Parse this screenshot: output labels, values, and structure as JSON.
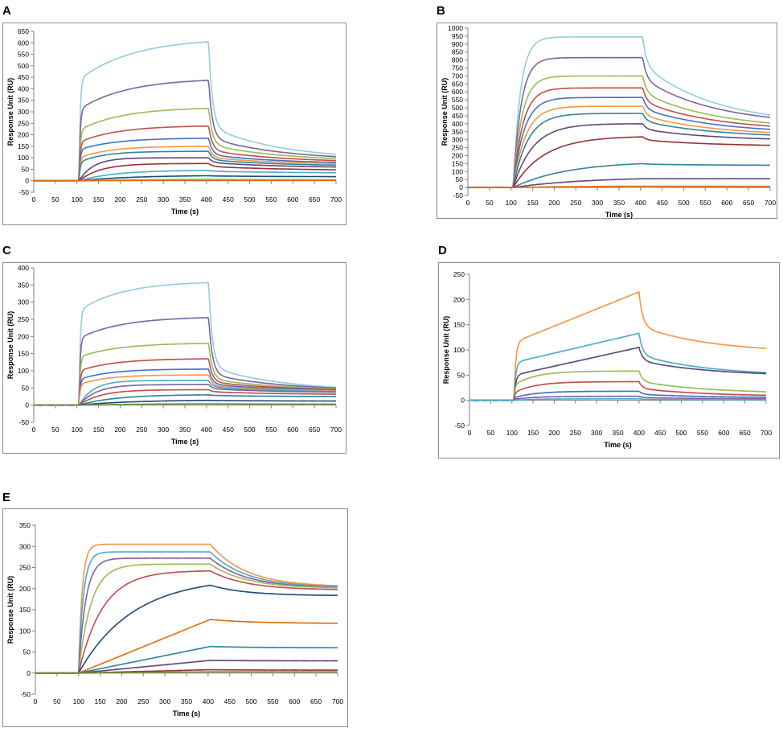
{
  "figure": {
    "panels": [
      "A",
      "B",
      "C",
      "D",
      "E"
    ]
  },
  "colors": {
    "blue": "#4472c4",
    "red": "#c0504d",
    "green": "#9bbb59",
    "purple": "#8064a2",
    "teal": "#4bacc6",
    "orange": "#f79646",
    "navy": "#1f4e79",
    "darkred": "#943634",
    "olive": "#76923c",
    "darkpurple": "#5f497a",
    "darkteal": "#31859b",
    "darkorange": "#e46c0a",
    "salmon": "#d99694",
    "lavender": "#b3a2c7",
    "lightgreen": "#c3d69b",
    "skyblue": "#93cddd"
  },
  "chart_data": [
    {
      "panel": "A",
      "type": "line",
      "title": "",
      "xlabel": "Time (s)",
      "ylabel": "Response Unit (RU)",
      "xlim": [
        0,
        700
      ],
      "ylim": [
        -50,
        650
      ],
      "xticks": [
        "0",
        "50",
        "100",
        "150",
        "200",
        "250",
        "300",
        "350",
        "400",
        "450",
        "500",
        "550",
        "600",
        "650",
        "700"
      ],
      "yticks": [
        "-50",
        "0",
        "50",
        "100",
        "150",
        "200",
        "250",
        "300",
        "350",
        "400",
        "450",
        "500",
        "550",
        "600",
        "650"
      ],
      "inject_start": 105,
      "inject_end": 405,
      "series": [
        {
          "color": "#93cddd",
          "jump": 440,
          "end_assoc": 605,
          "rate": 0.008,
          "end_dissoc": 115,
          "fast": 0.75
        },
        {
          "color": "#8064a2",
          "jump": 310,
          "end_assoc": 437,
          "rate": 0.009,
          "end_dissoc": 105,
          "fast": 0.75
        },
        {
          "color": "#9bbb59",
          "jump": 220,
          "end_assoc": 315,
          "rate": 0.01,
          "end_dissoc": 97,
          "fast": 0.72
        },
        {
          "color": "#c0504d",
          "jump": 168,
          "end_assoc": 238,
          "rate": 0.011,
          "end_dissoc": 88,
          "fast": 0.7
        },
        {
          "color": "#4472c4",
          "jump": 135,
          "end_assoc": 185,
          "rate": 0.012,
          "end_dissoc": 80,
          "fast": 0.68
        },
        {
          "color": "#f79646",
          "jump": 100,
          "end_assoc": 150,
          "rate": 0.014,
          "end_dissoc": 75,
          "fast": 0.65
        },
        {
          "color": "#31859b",
          "jump": 80,
          "end_assoc": 128,
          "rate": 0.018,
          "end_dissoc": 68,
          "fast": 0.6
        },
        {
          "color": "#5f497a",
          "jump": 0,
          "end_assoc": 100,
          "rate": 0.03,
          "end_dissoc": 60,
          "fast": 0.5
        },
        {
          "color": "#943634",
          "jump": 0,
          "end_assoc": 75,
          "rate": 0.02,
          "end_dissoc": 48,
          "fast": 0.45
        },
        {
          "color": "#4bacc6",
          "jump": 0,
          "end_assoc": 45,
          "rate": 0.012,
          "end_dissoc": 35,
          "fast": 0.3
        },
        {
          "color": "#1f4e79",
          "jump": 0,
          "end_assoc": 22,
          "rate": 0.008,
          "end_dissoc": 18,
          "fast": 0.2
        },
        {
          "color": "#c3d69b",
          "jump": 0,
          "end_assoc": 8,
          "rate": 0.006,
          "end_dissoc": 6,
          "fast": 0.1
        },
        {
          "color": "#e46c0a",
          "jump": 0,
          "end_assoc": 3,
          "rate": 0.006,
          "end_dissoc": 2,
          "fast": 0.1
        }
      ]
    },
    {
      "panel": "B",
      "type": "line",
      "title": "",
      "xlabel": "Time (s)",
      "ylabel": "Response Unit (RU)",
      "xlim": [
        0,
        700
      ],
      "ylim": [
        -50,
        1000
      ],
      "xticks": [
        "0",
        "50",
        "100",
        "150",
        "200",
        "250",
        "300",
        "350",
        "400",
        "450",
        "500",
        "550",
        "600",
        "650",
        "700"
      ],
      "yticks": [
        "-50",
        "0",
        "50",
        "100",
        "150",
        "200",
        "250",
        "300",
        "350",
        "400",
        "450",
        "500",
        "550",
        "600",
        "650",
        "700",
        "750",
        "800",
        "850",
        "900",
        "950",
        "1000"
      ],
      "inject_start": 105,
      "inject_end": 405,
      "series": [
        {
          "color": "#93cddd",
          "jump": 0,
          "end_assoc": 945,
          "rate": 0.06,
          "end_dissoc": 455,
          "fast": 0.35
        },
        {
          "color": "#8064a2",
          "jump": 0,
          "end_assoc": 815,
          "rate": 0.055,
          "end_dissoc": 440,
          "fast": 0.35
        },
        {
          "color": "#9bbb59",
          "jump": 0,
          "end_assoc": 700,
          "rate": 0.05,
          "end_dissoc": 405,
          "fast": 0.35
        },
        {
          "color": "#c0504d",
          "jump": 0,
          "end_assoc": 625,
          "rate": 0.045,
          "end_dissoc": 385,
          "fast": 0.35
        },
        {
          "color": "#4472c4",
          "jump": 0,
          "end_assoc": 565,
          "rate": 0.04,
          "end_dissoc": 365,
          "fast": 0.35
        },
        {
          "color": "#f79646",
          "jump": 0,
          "end_assoc": 510,
          "rate": 0.035,
          "end_dissoc": 345,
          "fast": 0.35
        },
        {
          "color": "#31859b",
          "jump": 0,
          "end_assoc": 465,
          "rate": 0.03,
          "end_dissoc": 330,
          "fast": 0.35
        },
        {
          "color": "#5f497a",
          "jump": 0,
          "end_assoc": 400,
          "rate": 0.022,
          "end_dissoc": 305,
          "fast": 0.35
        },
        {
          "color": "#943634",
          "jump": 0,
          "end_assoc": 318,
          "rate": 0.014,
          "end_dissoc": 265,
          "fast": 0.35
        },
        {
          "color": "#31859b",
          "jump": 0,
          "end_assoc": 150,
          "rate": 0.008,
          "end_dissoc": 140,
          "fast": 0.3
        },
        {
          "color": "#5f497a",
          "jump": 0,
          "end_assoc": 55,
          "rate": 0.006,
          "end_dissoc": 55,
          "fast": 0.2
        },
        {
          "color": "#e46c0a",
          "jump": 0,
          "end_assoc": 8,
          "rate": 0.006,
          "end_dissoc": 7,
          "fast": 0.1
        }
      ]
    },
    {
      "panel": "C",
      "type": "line",
      "title": "",
      "xlabel": "Time (s)",
      "ylabel": "Response Unit (RU)",
      "xlim": [
        0,
        700
      ],
      "ylim": [
        -50,
        400
      ],
      "xticks": [
        "0",
        "50",
        "100",
        "150",
        "200",
        "250",
        "300",
        "350",
        "400",
        "450",
        "500",
        "550",
        "600",
        "650",
        "700"
      ],
      "yticks": [
        "-50",
        "0",
        "50",
        "100",
        "150",
        "200",
        "250",
        "300",
        "350",
        "400"
      ],
      "inject_start": 105,
      "inject_end": 405,
      "series": [
        {
          "color": "#93cddd",
          "jump": 275,
          "end_assoc": 357,
          "rate": 0.01,
          "end_dissoc": 52,
          "fast": 0.8
        },
        {
          "color": "#8064a2",
          "jump": 195,
          "end_assoc": 255,
          "rate": 0.01,
          "end_dissoc": 50,
          "fast": 0.8
        },
        {
          "color": "#9bbb59",
          "jump": 140,
          "end_assoc": 180,
          "rate": 0.011,
          "end_dissoc": 48,
          "fast": 0.78
        },
        {
          "color": "#c0504d",
          "jump": 100,
          "end_assoc": 135,
          "rate": 0.012,
          "end_dissoc": 46,
          "fast": 0.75
        },
        {
          "color": "#4472c4",
          "jump": 75,
          "end_assoc": 105,
          "rate": 0.014,
          "end_dissoc": 44,
          "fast": 0.72
        },
        {
          "color": "#f79646",
          "jump": 60,
          "end_assoc": 88,
          "rate": 0.016,
          "end_dissoc": 42,
          "fast": 0.7
        },
        {
          "color": "#4bacc6",
          "jump": 0,
          "end_assoc": 72,
          "rate": 0.03,
          "end_dissoc": 40,
          "fast": 0.6
        },
        {
          "color": "#8064a2",
          "jump": 0,
          "end_assoc": 60,
          "rate": 0.025,
          "end_dissoc": 38,
          "fast": 0.55
        },
        {
          "color": "#c0504d",
          "jump": 0,
          "end_assoc": 45,
          "rate": 0.02,
          "end_dissoc": 32,
          "fast": 0.45
        },
        {
          "color": "#31859b",
          "jump": 0,
          "end_assoc": 30,
          "rate": 0.012,
          "end_dissoc": 25,
          "fast": 0.3
        },
        {
          "color": "#1f4e79",
          "jump": 0,
          "end_assoc": 14,
          "rate": 0.008,
          "end_dissoc": 12,
          "fast": 0.2
        },
        {
          "color": "#76923c",
          "jump": 0,
          "end_assoc": 4,
          "rate": 0.006,
          "end_dissoc": 3,
          "fast": 0.1
        }
      ]
    },
    {
      "panel": "D",
      "type": "line",
      "title": "",
      "xlabel": "Time (s)",
      "ylabel": "Response Unit (RU)",
      "xlim": [
        0,
        700
      ],
      "ylim": [
        -50,
        250
      ],
      "xticks": [
        "0",
        "50",
        "100",
        "150",
        "200",
        "250",
        "300",
        "350",
        "400",
        "450",
        "500",
        "550",
        "600",
        "650",
        "700"
      ],
      "yticks": [
        "-50",
        "0",
        "50",
        "100",
        "150",
        "200",
        "250"
      ],
      "inject_start": 105,
      "inject_end": 400,
      "series": [
        {
          "color": "#f79646",
          "jump": 115,
          "end_assoc": 215,
          "rate": 0.0,
          "linear": true,
          "end_dissoc": 103,
          "fast": 0.6
        },
        {
          "color": "#4bacc6",
          "jump": 75,
          "end_assoc": 133,
          "rate": 0.0,
          "linear": true,
          "end_dissoc": 55,
          "fast": 0.55
        },
        {
          "color": "#5f497a",
          "jump": 50,
          "end_assoc": 105,
          "rate": 0.0,
          "linear": true,
          "end_dissoc": 53,
          "fast": 0.5
        },
        {
          "color": "#9bbb59",
          "jump": 30,
          "end_assoc": 58,
          "rate": 0.02,
          "end_dissoc": 17,
          "fast": 0.5
        },
        {
          "color": "#c0504d",
          "jump": 15,
          "end_assoc": 37,
          "rate": 0.02,
          "end_dissoc": 10,
          "fast": 0.5
        },
        {
          "color": "#4472c4",
          "jump": 5,
          "end_assoc": 18,
          "rate": 0.02,
          "end_dissoc": 6,
          "fast": 0.5
        },
        {
          "color": "#8064a2",
          "jump": 2,
          "end_assoc": 8,
          "rate": 0.02,
          "end_dissoc": 3,
          "fast": 0.5
        },
        {
          "color": "#4bacc6",
          "jump": 0,
          "end_assoc": 3,
          "rate": 0.02,
          "end_dissoc": 1,
          "fast": 0.5
        }
      ]
    },
    {
      "panel": "E",
      "type": "line",
      "title": "",
      "xlabel": "Time (s)",
      "ylabel": "Response Unit (RU)",
      "xlim": [
        0,
        700
      ],
      "ylim": [
        -50,
        350
      ],
      "xticks": [
        "0",
        "50",
        "100",
        "150",
        "200",
        "250",
        "300",
        "350",
        "400",
        "450",
        "500",
        "550",
        "600",
        "650",
        "700"
      ],
      "yticks": [
        "-50",
        "0",
        "50",
        "100",
        "150",
        "200",
        "250",
        "300",
        "350"
      ],
      "inject_start": 100,
      "inject_end": 405,
      "series": [
        {
          "color": "#f79646",
          "jump": 0,
          "end_assoc": 305,
          "rate": 0.12,
          "end_dissoc": 207,
          "fast": 0.0,
          "slow": 0.012
        },
        {
          "color": "#4bacc6",
          "jump": 0,
          "end_assoc": 287,
          "rate": 0.09,
          "end_dissoc": 205,
          "fast": 0.0,
          "slow": 0.012
        },
        {
          "color": "#8064a2",
          "jump": 0,
          "end_assoc": 272,
          "rate": 0.06,
          "end_dissoc": 203,
          "fast": 0.0,
          "slow": 0.012
        },
        {
          "color": "#9bbb59",
          "jump": 0,
          "end_assoc": 258,
          "rate": 0.035,
          "end_dissoc": 202,
          "fast": 0.0,
          "slow": 0.012
        },
        {
          "color": "#c0504d",
          "jump": 0,
          "end_assoc": 242,
          "rate": 0.018,
          "end_dissoc": 198,
          "fast": 0.0,
          "slow": 0.012
        },
        {
          "color": "#1f4e79",
          "jump": 0,
          "end_assoc": 208,
          "rate": 0.008,
          "end_dissoc": 184,
          "fast": 0.0,
          "slow": 0.012
        },
        {
          "color": "#e46c0a",
          "jump": 0,
          "end_assoc": 127,
          "rate": 0.0,
          "linear": true,
          "end_dissoc": 118,
          "fast": 0.0,
          "slow": 0.01
        },
        {
          "color": "#31859b",
          "jump": 0,
          "end_assoc": 63,
          "rate": 0.0,
          "linear": true,
          "end_dissoc": 60,
          "fast": 0.0,
          "slow": 0.01
        },
        {
          "color": "#5f497a",
          "jump": 0,
          "end_assoc": 30,
          "rate": 0.0,
          "linear": true,
          "end_dissoc": 29,
          "fast": 0.0,
          "slow": 0.01
        },
        {
          "color": "#943634",
          "jump": 0,
          "end_assoc": 8,
          "rate": 0.0,
          "linear": true,
          "end_dissoc": 7,
          "fast": 0.0,
          "slow": 0.01
        },
        {
          "color": "#76923c",
          "jump": 0,
          "end_assoc": 3,
          "rate": 0.0,
          "linear": true,
          "end_dissoc": 3,
          "fast": 0.0,
          "slow": 0.01
        }
      ]
    }
  ]
}
